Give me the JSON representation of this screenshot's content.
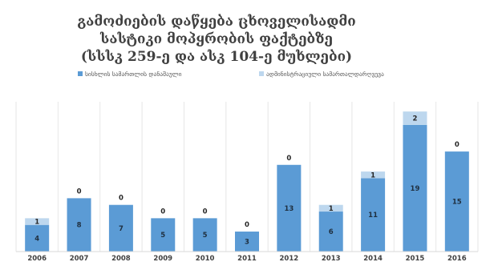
{
  "chart_data": {
    "type": "bar",
    "stacked": true,
    "title_lines": [
      "გამოძიების დაწყება ცხოველისადმი",
      "სასტიკი მოპყრობის ფაქტებზე",
      "(სსსკ 259-ე და ასკ 104-ე მუხლები)"
    ],
    "categories": [
      "2006",
      "2007",
      "2008",
      "2009",
      "2010",
      "2011",
      "2012",
      "2013",
      "2014",
      "2015",
      "2016"
    ],
    "series": [
      {
        "name": "სისხლის სამართლის დანაშაული",
        "color": "#5b9bd5",
        "values": [
          4,
          8,
          7,
          5,
          5,
          3,
          13,
          6,
          11,
          19,
          15
        ]
      },
      {
        "name": "ადმინისტრაციული სამართალდარღვევა",
        "color": "#bdd7ee",
        "values": [
          1,
          0,
          0,
          0,
          0,
          0,
          0,
          1,
          1,
          2,
          0
        ]
      }
    ],
    "ylim": [
      0,
      21.5
    ],
    "grid": "vertical-separators",
    "legend_position": "top"
  }
}
